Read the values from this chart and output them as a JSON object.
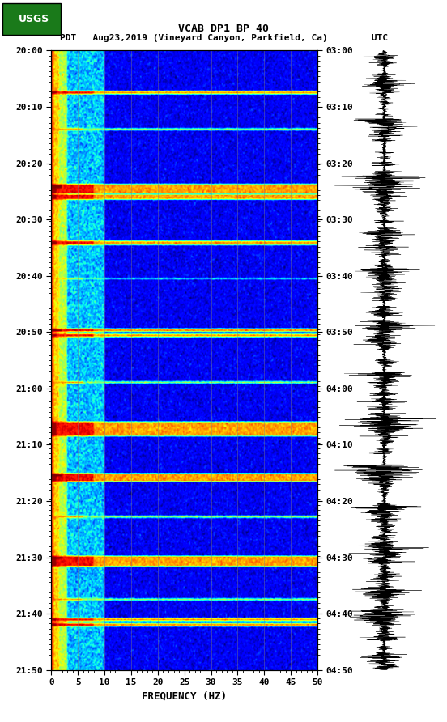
{
  "title_line1": "VCAB DP1 BP 40",
  "title_line2": "PDT   Aug23,2019 (Vineyard Canyon, Parkfield, Ca)        UTC",
  "left_time_labels": [
    "20:00",
    "20:10",
    "20:20",
    "20:30",
    "20:40",
    "20:50",
    "21:00",
    "21:10",
    "21:20",
    "21:30",
    "21:40",
    "21:50"
  ],
  "right_time_labels": [
    "03:00",
    "03:10",
    "03:20",
    "03:30",
    "03:40",
    "03:50",
    "04:00",
    "04:10",
    "04:20",
    "04:30",
    "04:40",
    "04:50"
  ],
  "freq_min": 0,
  "freq_max": 50,
  "freq_ticks": [
    0,
    5,
    10,
    15,
    20,
    25,
    30,
    35,
    40,
    45,
    50
  ],
  "xlabel": "FREQUENCY (HZ)",
  "time_rows": 600,
  "freq_cols": 500,
  "vertical_lines_freq": [
    5,
    10,
    15,
    20,
    25,
    30,
    35,
    40,
    45
  ],
  "vline_color": "#808080",
  "colormap": "jet",
  "background_color": "#ffffff",
  "earthquake_rows_strong": [
    40,
    130,
    135,
    140,
    185,
    270,
    275,
    360,
    365,
    370,
    410,
    415,
    490,
    495,
    550,
    555
  ],
  "earthquake_rows_medium": [
    75,
    220,
    320,
    450,
    530
  ],
  "low_freq_cols": 30,
  "mid_freq_cols": 100
}
